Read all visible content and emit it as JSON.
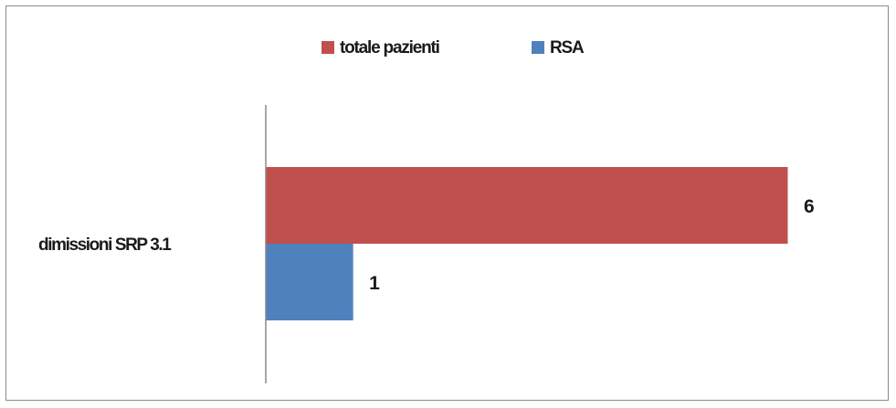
{
  "chart_data": {
    "type": "bar",
    "orientation": "horizontal",
    "categories": [
      "dimissioni SRP 3.1"
    ],
    "series": [
      {
        "name": "totale pazienti",
        "values": [
          6
        ],
        "color": "#c0504d"
      },
      {
        "name": "RSA",
        "values": [
          1
        ],
        "color": "#4f81bd"
      }
    ],
    "xlim": [
      0,
      6
    ],
    "data_labels": true,
    "grid": false,
    "legend_position": "top"
  }
}
